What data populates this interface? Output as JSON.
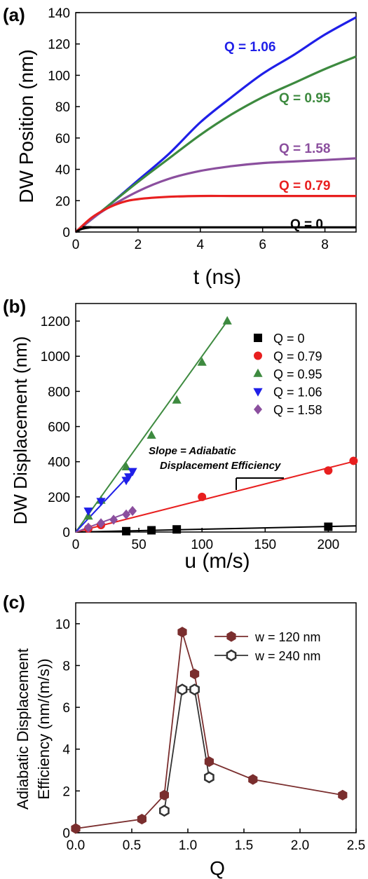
{
  "chart_data": [
    {
      "panel_label": "(a)",
      "type": "line",
      "xlabel": "t (ns)",
      "ylabel": "DW Position (nm)",
      "xlim": [
        0,
        9
      ],
      "ylim": [
        0,
        140
      ],
      "xticks": [
        0,
        2,
        4,
        6,
        8
      ],
      "yticks": [
        0,
        20,
        40,
        60,
        80,
        100,
        120,
        140
      ],
      "grid": false,
      "series": [
        {
          "name": "Q = 1.06",
          "color": "#1f1fe8",
          "points": [
            [
              0,
              0
            ],
            [
              0.5,
              8
            ],
            [
              1,
              16
            ],
            [
              2,
              33
            ],
            [
              3,
              50
            ],
            [
              4,
              70
            ],
            [
              5,
              86
            ],
            [
              6,
              101
            ],
            [
              7,
              113
            ],
            [
              8,
              126
            ],
            [
              9,
              137
            ]
          ]
        },
        {
          "name": "Q = 0.95",
          "color": "#3d8a3f",
          "points": [
            [
              0,
              0
            ],
            [
              0.5,
              8
            ],
            [
              1,
              16
            ],
            [
              2,
              32
            ],
            [
              3,
              47
            ],
            [
              4,
              62
            ],
            [
              5,
              75
            ],
            [
              6,
              86
            ],
            [
              7,
              95
            ],
            [
              8,
              104
            ],
            [
              9,
              112
            ]
          ]
        },
        {
          "name": "Q = 1.58",
          "color": "#8b4f9e",
          "points": [
            [
              0,
              0
            ],
            [
              0.5,
              8
            ],
            [
              1,
              15
            ],
            [
              2,
              26
            ],
            [
              3,
              34
            ],
            [
              4,
              39
            ],
            [
              5,
              42
            ],
            [
              6,
              44
            ],
            [
              7,
              45
            ],
            [
              8,
              46
            ],
            [
              9,
              47
            ]
          ]
        },
        {
          "name": "Q = 0.79",
          "color": "#e81f1f",
          "points": [
            [
              0,
              0
            ],
            [
              0.5,
              9
            ],
            [
              1,
              15
            ],
            [
              1.5,
              19
            ],
            [
              2,
              21
            ],
            [
              3,
              22.5
            ],
            [
              4,
              23
            ],
            [
              5,
              23
            ],
            [
              6,
              23
            ],
            [
              7,
              23
            ],
            [
              8,
              23
            ],
            [
              9,
              23
            ]
          ]
        },
        {
          "name": "Q = 0",
          "color": "#000000",
          "points": [
            [
              0,
              0
            ],
            [
              0.2,
              2
            ],
            [
              0.5,
              3
            ],
            [
              1,
              3
            ],
            [
              9,
              3
            ]
          ]
        }
      ],
      "series_labels": [
        "Q = 1.06",
        "Q = 0.95",
        "Q = 1.58",
        "Q = 0.79",
        "Q = 0"
      ]
    },
    {
      "panel_label": "(b)",
      "type": "scatter",
      "xlabel": "u (m/s)",
      "ylabel": "DW Displacement (nm)",
      "xlim": [
        0,
        222
      ],
      "ylim": [
        0,
        1300
      ],
      "xticks": [
        0,
        50,
        100,
        150,
        200
      ],
      "yticks": [
        0,
        200,
        400,
        600,
        800,
        1000,
        1200
      ],
      "grid": false,
      "legend_position": "top-right",
      "annotation_line1": "Slope = Adiabatic",
      "annotation_line2": "Displacement Efficiency",
      "series": [
        {
          "name": "Q = 0",
          "color": "#000000",
          "marker": "square",
          "points": [
            [
              40,
              5
            ],
            [
              60,
              10
            ],
            [
              80,
              15
            ],
            [
              200,
              30
            ]
          ],
          "fit": [
            [
              0,
              0
            ],
            [
              222,
              35
            ]
          ]
        },
        {
          "name": "Q = 0.79",
          "color": "#e81f1f",
          "marker": "circle",
          "points": [
            [
              10,
              20
            ],
            [
              20,
              40
            ],
            [
              100,
              200
            ],
            [
              200,
              350
            ],
            [
              220,
              405
            ]
          ],
          "fit": [
            [
              0,
              0
            ],
            [
              222,
              405
            ]
          ]
        },
        {
          "name": "Q = 0.95",
          "color": "#3d8a3f",
          "marker": "triangle-up",
          "points": [
            [
              10,
              90
            ],
            [
              20,
              180
            ],
            [
              40,
              370
            ],
            [
              60,
              550
            ],
            [
              80,
              750
            ],
            [
              100,
              965
            ],
            [
              120,
              1200
            ]
          ],
          "fit": [
            [
              0,
              0
            ],
            [
              120,
              1200
            ]
          ]
        },
        {
          "name": "Q = 1.06",
          "color": "#1f1fe8",
          "marker": "triangle-down",
          "points": [
            [
              10,
              120
            ],
            [
              20,
              175
            ],
            [
              40,
              295
            ],
            [
              42,
              315
            ],
            [
              45,
              345
            ]
          ],
          "fit": [
            [
              0,
              0
            ],
            [
              45,
              345
            ]
          ]
        },
        {
          "name": "Q = 1.58",
          "color": "#8b4f9e",
          "marker": "diamond",
          "points": [
            [
              10,
              25
            ],
            [
              20,
              50
            ],
            [
              30,
              70
            ],
            [
              40,
              100
            ],
            [
              45,
              120
            ]
          ],
          "fit": [
            [
              0,
              0
            ],
            [
              45,
              120
            ]
          ]
        }
      ]
    },
    {
      "panel_label": "(c)",
      "type": "line",
      "xlabel": "Q",
      "ylabel_line1": "Adiabatic Displacement",
      "ylabel_line2": "Efficiency (nm/(m/s))",
      "xlim": [
        0,
        2.5
      ],
      "ylim": [
        0,
        11
      ],
      "xticks": [
        0.0,
        0.5,
        1.0,
        1.5,
        2.0,
        2.5
      ],
      "xtick_labels": [
        "0.0",
        "0.5",
        "1.0",
        "1.5",
        "2.0",
        "2.5"
      ],
      "yticks": [
        0,
        2,
        4,
        6,
        8,
        10
      ],
      "grid": false,
      "legend_position": "top-right",
      "series": [
        {
          "name": "w = 120 nm",
          "color": "#7a2e2e",
          "marker": "filled-hexagon",
          "points": [
            [
              0,
              0.2
            ],
            [
              0.59,
              0.65
            ],
            [
              0.79,
              1.8
            ],
            [
              0.95,
              9.6
            ],
            [
              1.06,
              7.6
            ],
            [
              1.19,
              3.4
            ],
            [
              1.58,
              2.55
            ],
            [
              2.38,
              1.8
            ]
          ]
        },
        {
          "name": "w = 240 nm",
          "color": "#333333",
          "marker": "open-hexagon",
          "points": [
            [
              0.79,
              1.05
            ],
            [
              0.95,
              6.85
            ],
            [
              1.06,
              6.85
            ],
            [
              1.19,
              2.65
            ]
          ]
        }
      ]
    }
  ]
}
